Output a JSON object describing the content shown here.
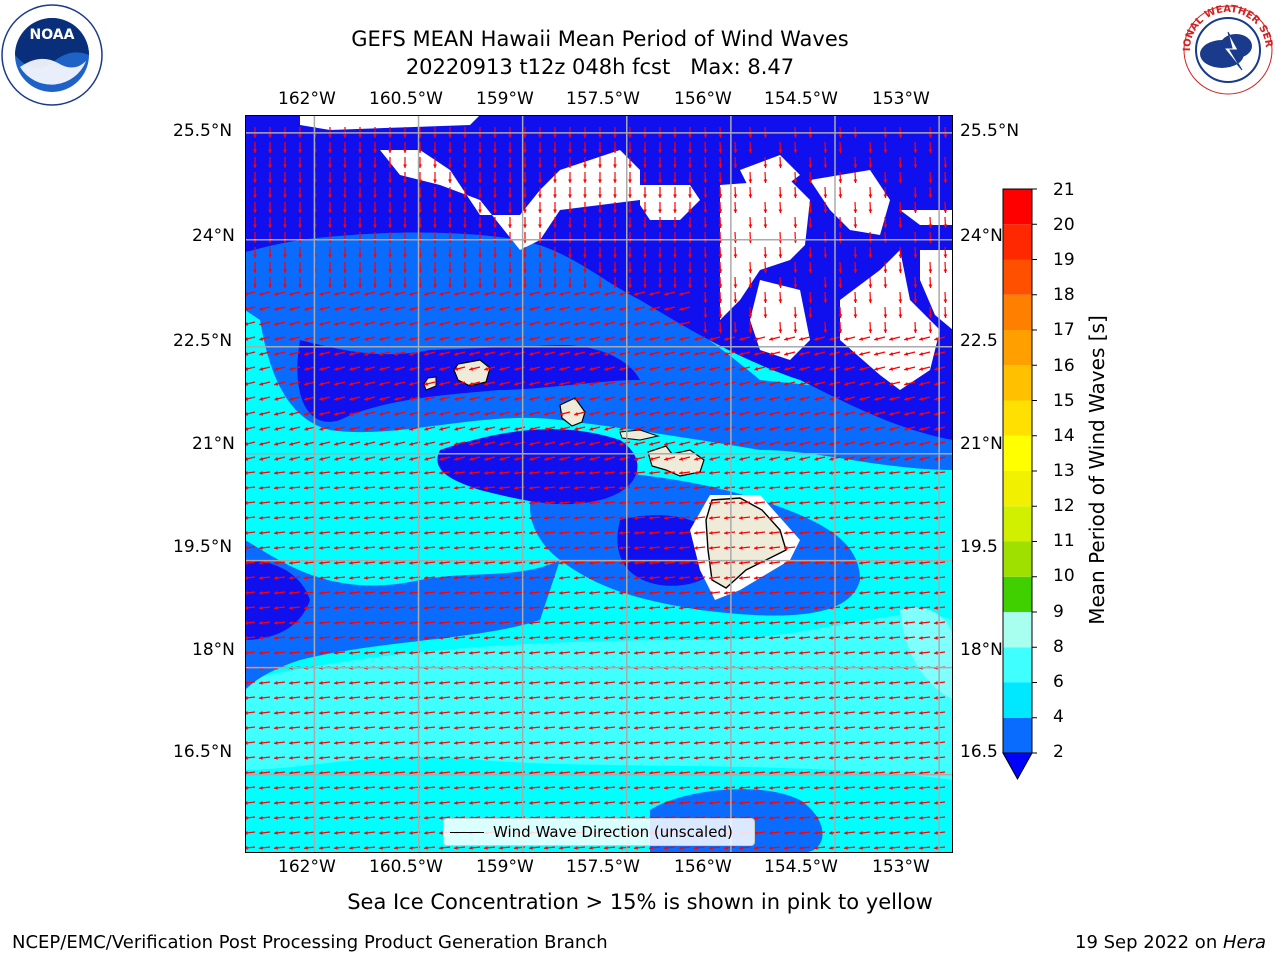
{
  "title": {
    "line1": "GEFS MEAN Hawaii Mean Period of Wind Waves",
    "line2": "20220913 t12z 048h fcst   Max: 8.47"
  },
  "logos": {
    "left": "noaa-logo",
    "right": "nws-logo",
    "left_text": "NOAA",
    "left_ring_text": "NATIONAL OCEANIC AND ATMOSPHERIC ADMINISTRATION · U.S. DEPARTMENT OF COMMERCE",
    "right_ring_text": "NATIONAL WEATHER SERVICE"
  },
  "map": {
    "lon_labels": [
      "162°W",
      "160.5°W",
      "159°W",
      "157.5°W",
      "156°W",
      "154.5°W",
      "153°W"
    ],
    "lat_labels": [
      "25.5°N",
      "24°N",
      "22.5°N",
      "21°N",
      "19.5°N",
      "18°N",
      "16.5°N"
    ],
    "lat_labels_right": [
      "25.5°N",
      "24°N",
      "22.5",
      "21°N",
      "19.5",
      "18°N",
      "16.5"
    ],
    "lon_range": [
      -163.0,
      -152.8
    ],
    "lat_range": [
      15.4,
      25.75
    ],
    "legend_label": "Wind Wave Direction (unscaled)",
    "arrow_color": "#ff0000",
    "land_color": "#eeebd9"
  },
  "colorbar": {
    "label": "Mean Period of Wind Waves [s]",
    "levels": [
      2,
      3,
      4,
      5,
      6,
      7,
      8,
      9,
      10,
      11,
      12,
      13,
      14,
      15,
      16,
      17,
      18,
      19,
      20,
      21
    ],
    "tick_labels": [
      "2",
      "4",
      "6",
      "8",
      "9",
      "10",
      "11",
      "12",
      "13",
      "14",
      "15",
      "16",
      "17",
      "18",
      "19",
      "20",
      "21"
    ],
    "colors": [
      "#0a6cff",
      "#00e8ff",
      "#40ffff",
      "#8cffff",
      "#a8fff0",
      "#50f080",
      "#00e000",
      "#40d000",
      "#a0e000",
      "#d0f000",
      "#f0f000",
      "#ffff00",
      "#ffe000",
      "#ffc000",
      "#ffa000",
      "#ff8000",
      "#ff5000",
      "#ff2800",
      "#ff0000"
    ],
    "under_color": "#0000ff"
  },
  "fields": {
    "dark_blue": "#1010ee",
    "mid_blue": "#0a6cff",
    "cyan": "#00ffff",
    "light_cyan": "#40ffff",
    "pale_cyan": "#80ffff"
  },
  "notes": {
    "ice": "Sea Ice Concentration > 15% is shown in pink to yellow"
  },
  "footer": {
    "left": "NCEP/EMC/Verification Post Processing Product Generation Branch",
    "right_prefix": "19 Sep 2022 on ",
    "right_host": "Hera"
  }
}
